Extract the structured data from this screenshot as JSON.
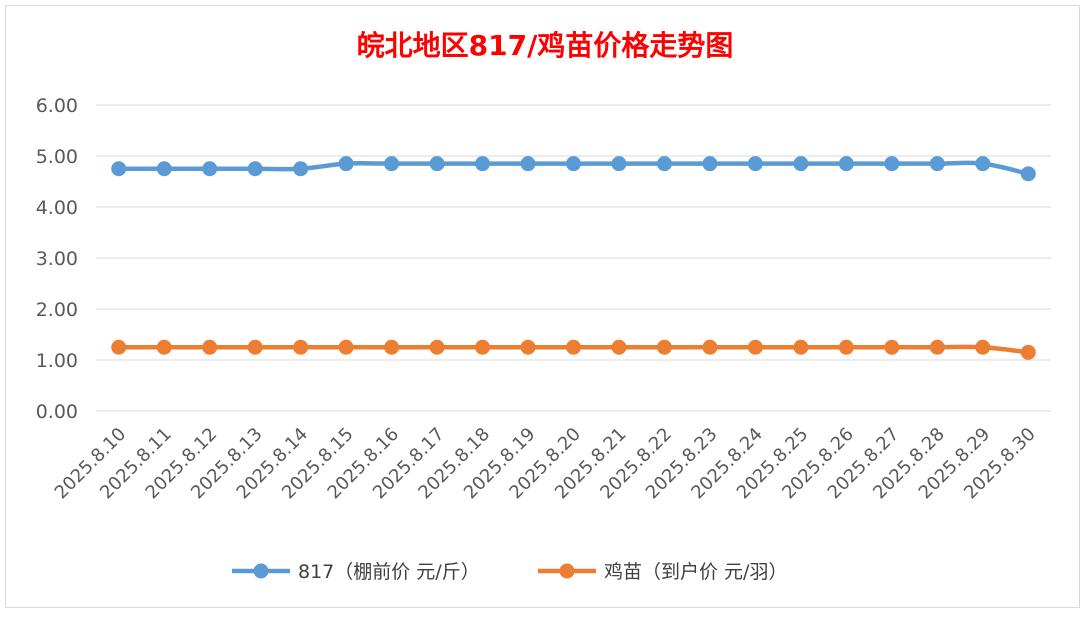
{
  "chart_data": {
    "type": "line",
    "title": "皖北地区817/鸡苗价格走势图",
    "xlabel": "",
    "ylabel": "",
    "categories": [
      "2025.8.10",
      "2025.8.11",
      "2025.8.12",
      "2025.8.13",
      "2025.8.14",
      "2025.8.15",
      "2025.8.16",
      "2025.8.17",
      "2025.8.18",
      "2025.8.19",
      "2025.8.20",
      "2025.8.21",
      "2025.8.22",
      "2025.8.23",
      "2025.8.24",
      "2025.8.25",
      "2025.8.26",
      "2025.8.27",
      "2025.8.28",
      "2025.8.29",
      "2025.8.30"
    ],
    "y_ticks": [
      "0.00",
      "1.00",
      "2.00",
      "3.00",
      "4.00",
      "5.00",
      "6.00"
    ],
    "ylim": [
      0,
      6
    ],
    "grid": true,
    "legend_position": "bottom",
    "series": [
      {
        "name": "817（棚前价 元/斤）",
        "color": "#5b9bd5",
        "values": [
          4.75,
          4.75,
          4.75,
          4.75,
          4.75,
          4.85,
          4.85,
          4.85,
          4.85,
          4.85,
          4.85,
          4.85,
          4.85,
          4.85,
          4.85,
          4.85,
          4.85,
          4.85,
          4.85,
          4.85,
          4.65
        ]
      },
      {
        "name": "鸡苗（到户价 元/羽）",
        "color": "#ed7d31",
        "values": [
          1.25,
          1.25,
          1.25,
          1.25,
          1.25,
          1.25,
          1.25,
          1.25,
          1.25,
          1.25,
          1.25,
          1.25,
          1.25,
          1.25,
          1.25,
          1.25,
          1.25,
          1.25,
          1.25,
          1.25,
          1.15
        ]
      }
    ]
  }
}
